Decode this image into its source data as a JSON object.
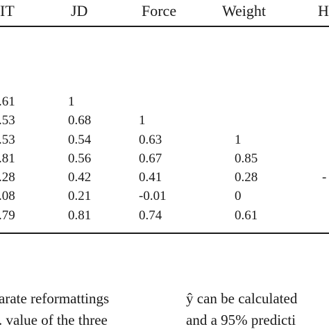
{
  "table": {
    "headers": [
      "IT",
      "JD",
      "Force",
      "Weight",
      "H"
    ],
    "rows": [
      [
        ".61",
        "1",
        "",
        "",
        ""
      ],
      [
        ".53",
        "0.68",
        "1",
        "",
        ""
      ],
      [
        ".53",
        "0.54",
        "0.63",
        "1",
        ""
      ],
      [
        ".81",
        "0.56",
        "0.67",
        "0.85",
        ""
      ],
      [
        ".28",
        "0.42",
        "0.41",
        "0.28",
        "-"
      ],
      [
        ".08",
        "0.21",
        "-0.01",
        "0",
        ""
      ],
      [
        ".79",
        "0.81",
        "0.74",
        "0.61",
        ""
      ]
    ]
  },
  "body_text": {
    "left_line1": "arate reformattings",
    "left_line2": ". value of the three",
    "right_line1": "ŷ can be calculated",
    "right_line2": "and a 95% predicti"
  }
}
